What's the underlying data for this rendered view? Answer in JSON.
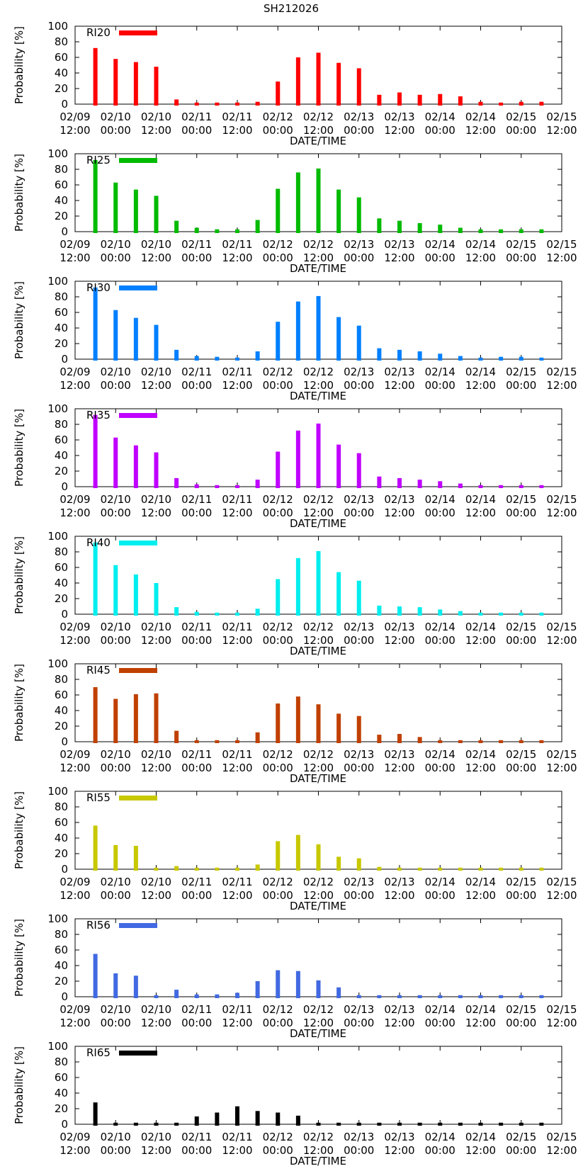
{
  "figure_title": "SH212026",
  "chart_data": {
    "type": "bar",
    "title": "SH212026",
    "xlabel": "DATE/TIME",
    "ylabel": "Probability [%]",
    "ylim": [
      0,
      100
    ],
    "yticks": [
      "0",
      "20",
      "40",
      "60",
      "80",
      "100"
    ],
    "xtick_labels": [
      [
        "02/09",
        "12:00"
      ],
      [
        "02/10",
        "00:00"
      ],
      [
        "02/10",
        "12:00"
      ],
      [
        "02/11",
        "00:00"
      ],
      [
        "02/11",
        "12:00"
      ],
      [
        "02/12",
        "00:00"
      ],
      [
        "02/12",
        "12:00"
      ],
      [
        "02/13",
        "00:00"
      ],
      [
        "02/13",
        "12:00"
      ],
      [
        "02/14",
        "00:00"
      ],
      [
        "02/14",
        "12:00"
      ],
      [
        "02/15",
        "00:00"
      ],
      [
        "02/15",
        "12:00"
      ]
    ],
    "x_hours_from_start": [
      6,
      12,
      18,
      24,
      30,
      36,
      42,
      48,
      54,
      60,
      66,
      72,
      78,
      84,
      90,
      96,
      102,
      108,
      114,
      120,
      126,
      132,
      138
    ],
    "xlim_hours": [
      0,
      144
    ],
    "legend_position": "top-left",
    "series": [
      {
        "name": "RI20",
        "color": "#ff0000",
        "values": [
          72,
          58,
          54,
          48,
          6,
          2,
          2,
          2,
          3,
          29,
          60,
          66,
          53,
          46,
          12,
          15,
          12,
          13,
          10,
          3,
          2,
          3,
          3
        ]
      },
      {
        "name": "RI25",
        "color": "#00bb00",
        "values": [
          92,
          63,
          54,
          46,
          14,
          5,
          3,
          3,
          15,
          55,
          76,
          81,
          54,
          44,
          17,
          14,
          11,
          9,
          5,
          3,
          3,
          3,
          3
        ]
      },
      {
        "name": "RI30",
        "color": "#0080ff",
        "values": [
          92,
          63,
          53,
          44,
          12,
          4,
          3,
          2,
          10,
          48,
          74,
          81,
          54,
          43,
          14,
          12,
          10,
          7,
          4,
          2,
          3,
          3,
          2
        ]
      },
      {
        "name": "RI35",
        "color": "#c000ff",
        "values": [
          92,
          63,
          53,
          44,
          11,
          3,
          2,
          2,
          9,
          45,
          72,
          81,
          54,
          43,
          13,
          11,
          9,
          7,
          4,
          2,
          2,
          2,
          2
        ]
      },
      {
        "name": "RI40",
        "color": "#00eeee",
        "values": [
          92,
          63,
          51,
          40,
          9,
          3,
          2,
          2,
          7,
          45,
          72,
          81,
          54,
          43,
          11,
          10,
          9,
          6,
          4,
          2,
          2,
          2,
          2
        ]
      },
      {
        "name": "RI45",
        "color": "#c04000",
        "values": [
          70,
          55,
          61,
          62,
          14,
          2,
          2,
          2,
          12,
          49,
          58,
          48,
          36,
          33,
          9,
          10,
          6,
          2,
          2,
          2,
          2,
          2,
          2
        ]
      },
      {
        "name": "RI55",
        "color": "#c8c800",
        "values": [
          56,
          31,
          30,
          2,
          4,
          2,
          2,
          2,
          6,
          36,
          44,
          32,
          16,
          14,
          3,
          2,
          2,
          2,
          2,
          2,
          2,
          2,
          2
        ]
      },
      {
        "name": "RI56",
        "color": "#4169e1",
        "values": [
          55,
          30,
          27,
          2,
          9,
          3,
          3,
          5,
          20,
          34,
          33,
          21,
          12,
          2,
          2,
          2,
          2,
          2,
          2,
          2,
          2,
          2,
          2
        ]
      },
      {
        "name": "RI65",
        "color": "#000000",
        "values": [
          28,
          2,
          2,
          2,
          2,
          10,
          15,
          23,
          17,
          15,
          11,
          2,
          2,
          2,
          2,
          2,
          2,
          2,
          2,
          2,
          2,
          2,
          2
        ]
      }
    ]
  }
}
